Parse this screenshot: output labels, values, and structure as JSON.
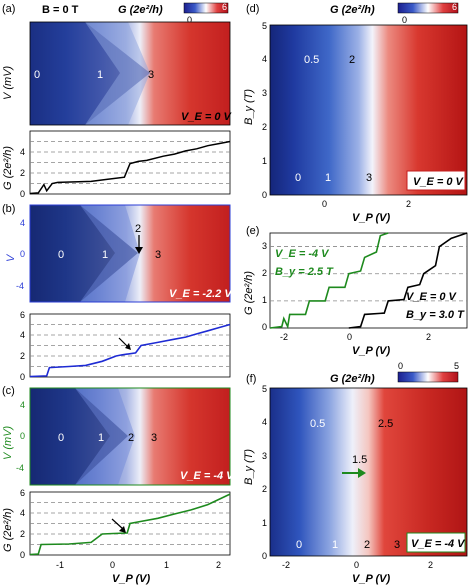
{
  "panel_letters": {
    "a": "(a)",
    "b": "(b)",
    "c": "(c)",
    "d": "(d)",
    "e": "(e)",
    "f": "(f)"
  },
  "colorbar_label": "G (2e²/h)",
  "colorbar_ticks": {
    "a_min": "0",
    "a_max": "6",
    "d_min": "0",
    "d_max": "6",
    "f_min": "0",
    "f_max": "5"
  },
  "colormap": {
    "low": "#1c1f8e",
    "mid": "#ffffff",
    "high": "#b0101a"
  },
  "panel_a": {
    "field_label": "B = 0 T",
    "gate_label": "V_E = 0 V",
    "region_labels": [
      "0",
      "1",
      "3"
    ],
    "map_ylabel": "V (mV)",
    "cut_ylabel": "G (2e²/h)",
    "cut_yticks": [
      "0",
      "2",
      "4"
    ],
    "map_yticks": []
  },
  "panel_b": {
    "gate_label": "V_E = -2.2 V",
    "region_labels": [
      "0",
      "1",
      "2",
      "3"
    ],
    "map_ylabel": "V",
    "map_yticks": [
      "4",
      "0",
      "-4"
    ],
    "cut_yticks": [
      "0",
      "2",
      "4",
      "6"
    ]
  },
  "panel_c": {
    "gate_label": "V_E = -4 V",
    "region_labels": [
      "0",
      "1",
      "2",
      "3"
    ],
    "map_ylabel": "V (mV)",
    "map_yticks": [
      "4",
      "0",
      "-4"
    ],
    "cut_ylabel": "G (2e²/h)",
    "cut_yticks": [
      "0",
      "2",
      "4",
      "6"
    ],
    "xlabel": "V_P (V)",
    "xticks": [
      "-1",
      "0",
      "1",
      "2"
    ]
  },
  "panel_d": {
    "gate_label": "V_E = 0 V",
    "ylabel": "B_y (T)",
    "yticks": [
      "0",
      "1",
      "2",
      "3",
      "4",
      "5"
    ],
    "xlabel": "V_P (V)",
    "xticks": [
      "0",
      "2"
    ],
    "region_labels": [
      "0",
      "1",
      "3",
      "0.5",
      "2"
    ]
  },
  "panel_e": {
    "ylabel": "G (2e²/h)",
    "yticks": [
      "0",
      "1",
      "2",
      "3"
    ],
    "xlabel": "V_P (V)",
    "xticks": [
      "-2",
      "0",
      "2"
    ],
    "legend_green_ve": "V_E = -4 V",
    "legend_green_b": "B_y = 2.5 T",
    "legend_black_ve": "V_E = 0 V",
    "legend_black_b": "B_y = 3.0 T"
  },
  "panel_f": {
    "gate_label": "V_E = -4 V",
    "ylabel": "B_y (T)",
    "yticks": [
      "0",
      "1",
      "2",
      "3",
      "4",
      "5"
    ],
    "xlabel": "V_P (V)",
    "xticks": [
      "-2",
      "0",
      "2"
    ],
    "region_labels": [
      "0",
      "1",
      "2",
      "3",
      "0.5",
      "2.5",
      "1.5"
    ]
  },
  "chart_data": [
    {
      "type": "line",
      "panel": "a-cut",
      "ylabel": "G (2e²/h)",
      "ylim": [
        0,
        6
      ],
      "series": [
        {
          "color": "#000000",
          "x": [
            -1.2,
            -1.05,
            -0.95,
            -0.9,
            -0.8,
            -0.7,
            -0.4,
            -0.1,
            0.2,
            0.5,
            0.6,
            0.75,
            0.9,
            1.2,
            1.4,
            1.6,
            1.8,
            2.0,
            2.2,
            2.4
          ],
          "values": [
            0.05,
            0.1,
            0.9,
            0.3,
            1.0,
            1.1,
            1.15,
            1.2,
            1.4,
            1.6,
            2.9,
            3.1,
            3.2,
            3.6,
            3.8,
            4.1,
            4.3,
            4.6,
            4.8,
            5.0
          ]
        }
      ]
    },
    {
      "type": "line",
      "panel": "b-cut",
      "ylim": [
        0,
        6
      ],
      "series": [
        {
          "color": "#1e2bd4",
          "x": [
            -1.2,
            -0.9,
            -0.85,
            -0.5,
            -0.2,
            0.1,
            0.35,
            0.45,
            0.7,
            0.8,
            1.1,
            1.4,
            1.6,
            1.8,
            2.0,
            2.2,
            2.4
          ],
          "values": [
            0.05,
            0.1,
            0.9,
            1.0,
            1.1,
            1.5,
            2.0,
            2.1,
            2.3,
            3.0,
            3.3,
            3.6,
            3.8,
            4.1,
            4.4,
            4.7,
            5.0
          ]
        }
      ]
    },
    {
      "type": "line",
      "panel": "c-cut",
      "ylabel": "G (2e²/h)",
      "xlabel": "V_P (V)",
      "ylim": [
        0,
        6
      ],
      "series": [
        {
          "color": "#1e8a1e",
          "x": [
            -1.2,
            -1.05,
            -1.0,
            -0.5,
            -0.1,
            0.1,
            0.3,
            0.55,
            0.6,
            0.8,
            1.1,
            1.4,
            1.7,
            2.0,
            2.2,
            2.4
          ],
          "values": [
            0.05,
            0.1,
            1.0,
            1.05,
            1.2,
            2.0,
            2.05,
            2.1,
            3.0,
            3.2,
            3.5,
            3.9,
            4.3,
            4.8,
            5.3,
            5.8
          ]
        }
      ]
    },
    {
      "type": "line",
      "panel": "e",
      "xlabel": "V_P (V)",
      "ylabel": "G (2e²/h)",
      "xlim": [
        -2.3,
        2.7
      ],
      "ylim": [
        0,
        3.5
      ],
      "series": [
        {
          "color": "#1e8a1e",
          "x": [
            -2.3,
            -2.0,
            -1.95,
            -1.85,
            -1.8,
            -1.4,
            -1.3,
            -0.9,
            -0.8,
            -0.4,
            -0.3,
            0.0,
            0.1,
            0.4,
            0.5,
            0.7
          ],
          "values": [
            0.0,
            0.05,
            0.35,
            0.05,
            0.5,
            0.5,
            1.0,
            1.0,
            1.5,
            1.5,
            2.0,
            2.1,
            2.6,
            2.8,
            3.4,
            3.5
          ]
        },
        {
          "color": "#000000",
          "x": [
            -0.3,
            0.0,
            0.1,
            0.6,
            0.7,
            1.1,
            1.2,
            1.5,
            1.6,
            1.9,
            2.0,
            2.3,
            2.7
          ],
          "values": [
            0.0,
            0.05,
            0.5,
            0.55,
            1.0,
            1.05,
            1.5,
            1.6,
            2.0,
            2.3,
            3.0,
            3.3,
            3.5
          ]
        }
      ]
    }
  ]
}
